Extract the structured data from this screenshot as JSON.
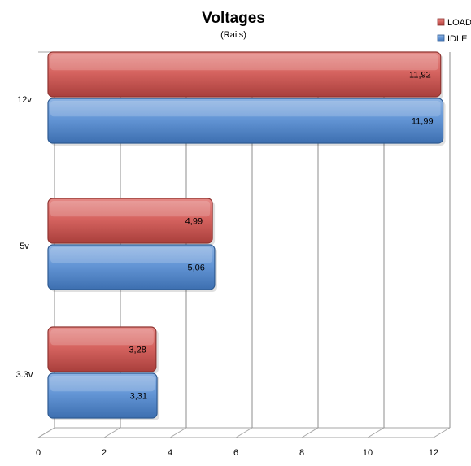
{
  "chart_data": {
    "type": "bar",
    "orientation": "horizontal",
    "title": "Voltages",
    "subtitle": "(Rails)",
    "categories": [
      "12v",
      "5v",
      "3.3v"
    ],
    "series": [
      {
        "name": "LOAD",
        "color": "#c0504d",
        "values": [
          11.92,
          4.99,
          3.28
        ],
        "labels": [
          "11,92",
          "4,99",
          "3,28"
        ]
      },
      {
        "name": "IDLE",
        "color": "#4f81bd",
        "values": [
          11.99,
          5.06,
          3.31
        ],
        "labels": [
          "11,99",
          "5,06",
          "3,31"
        ]
      }
    ],
    "xlim": [
      0,
      12
    ],
    "xticks": [
      0,
      2,
      4,
      6,
      8,
      10,
      12
    ],
    "xtick_labels": [
      "0",
      "2",
      "4",
      "6",
      "8",
      "10",
      "12"
    ],
    "grid": "vertical",
    "legend": "top-right"
  }
}
